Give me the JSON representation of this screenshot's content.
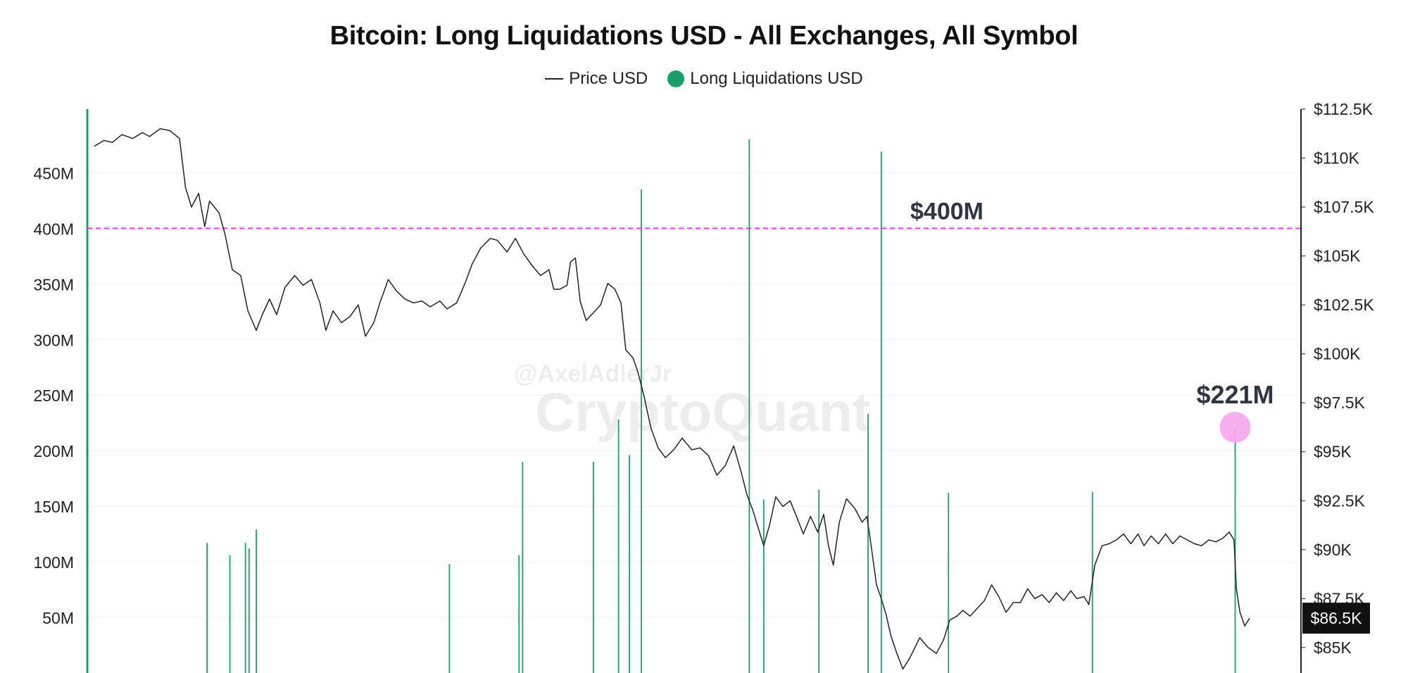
{
  "chart_data": {
    "type": "bar",
    "title": "Bitcoin: Long Liquidations USD - All Exchanges, All Symbol",
    "legend": [
      {
        "name": "Price USD",
        "marker": "line",
        "color": "#222222"
      },
      {
        "name": "Long Liquidations USD",
        "marker": "dot",
        "color": "#1a9e6c"
      }
    ],
    "legend_position": "top-center",
    "grid": true,
    "watermark": {
      "line1": "@AxelAdlerJr",
      "line2": "CryptoQuant"
    },
    "y_left": {
      "range": [
        0,
        480000000
      ],
      "ticks": [
        {
          "value": 50000000,
          "label": "50M"
        },
        {
          "value": 100000000,
          "label": "100M"
        },
        {
          "value": 150000000,
          "label": "150M"
        },
        {
          "value": 200000000,
          "label": "200M"
        },
        {
          "value": 250000000,
          "label": "250M"
        },
        {
          "value": 300000000,
          "label": "300M"
        },
        {
          "value": 350000000,
          "label": "350M"
        },
        {
          "value": 400000000,
          "label": "400M"
        },
        {
          "value": 450000000,
          "label": "450M"
        }
      ]
    },
    "y_right": {
      "range": [
        83700,
        112500
      ],
      "ticks": [
        {
          "value": 85000,
          "label": "$85K"
        },
        {
          "value": 87500,
          "label": "$87.5K"
        },
        {
          "value": 90000,
          "label": "$90K"
        },
        {
          "value": 92500,
          "label": "$92.5K"
        },
        {
          "value": 95000,
          "label": "$95K"
        },
        {
          "value": 97500,
          "label": "$97.5K"
        },
        {
          "value": 100000,
          "label": "$100K"
        },
        {
          "value": 102500,
          "label": "$102.5K"
        },
        {
          "value": 105000,
          "label": "$105K"
        },
        {
          "value": 107500,
          "label": "$107.5K"
        },
        {
          "value": 110000,
          "label": "$110K"
        },
        {
          "value": 112500,
          "label": "$112.5K"
        }
      ]
    },
    "x": {
      "range": [
        0,
        100
      ]
    },
    "threshold": {
      "value": 400000000,
      "label": "$400M",
      "color": "#e040e0"
    },
    "highlight": {
      "x": 95.1,
      "value": 221000000,
      "label": "$221M",
      "color": "#f7a6ee"
    },
    "current_price": {
      "value": 86500,
      "label": "$86.5K"
    },
    "series": [
      {
        "name": "Long Liquidations USD",
        "kind": "bar",
        "color": "#1a9e6c",
        "points": [
          {
            "x": 9.4,
            "v": 117000000
          },
          {
            "x": 11.3,
            "v": 106000000
          },
          {
            "x": 12.6,
            "v": 117000000
          },
          {
            "x": 12.9,
            "v": 112000000
          },
          {
            "x": 13.5,
            "v": 129000000
          },
          {
            "x": 29.6,
            "v": 98000000
          },
          {
            "x": 35.4,
            "v": 106000000
          },
          {
            "x": 35.7,
            "v": 190000000
          },
          {
            "x": 41.6,
            "v": 190000000
          },
          {
            "x": 43.7,
            "v": 228000000
          },
          {
            "x": 44.6,
            "v": 196000000
          },
          {
            "x": 45.6,
            "v": 435000000
          },
          {
            "x": 54.6,
            "v": 480000000
          },
          {
            "x": 55.8,
            "v": 156000000
          },
          {
            "x": 60.4,
            "v": 165000000
          },
          {
            "x": 64.5,
            "v": 233000000
          },
          {
            "x": 65.6,
            "v": 469000000
          },
          {
            "x": 71.2,
            "v": 162000000
          },
          {
            "x": 83.2,
            "v": 163000000
          },
          {
            "x": 95.1,
            "v": 221000000
          }
        ]
      },
      {
        "name": "Price USD",
        "kind": "line",
        "color": "#222222",
        "points": [
          [
            0.0,
            110600
          ],
          [
            0.8,
            110900
          ],
          [
            1.5,
            110800
          ],
          [
            2.3,
            111200
          ],
          [
            3.2,
            111000
          ],
          [
            4.0,
            111300
          ],
          [
            4.6,
            111100
          ],
          [
            5.5,
            111500
          ],
          [
            6.3,
            111400
          ],
          [
            7.1,
            111000
          ],
          [
            7.6,
            108500
          ],
          [
            8.1,
            107500
          ],
          [
            8.7,
            108200
          ],
          [
            9.2,
            106500
          ],
          [
            9.6,
            107800
          ],
          [
            10.4,
            107200
          ],
          [
            10.9,
            106100
          ],
          [
            11.5,
            104300
          ],
          [
            12.2,
            104000
          ],
          [
            12.8,
            102200
          ],
          [
            13.5,
            101200
          ],
          [
            14.0,
            102000
          ],
          [
            14.6,
            102800
          ],
          [
            15.2,
            102000
          ],
          [
            15.9,
            103400
          ],
          [
            16.7,
            104000
          ],
          [
            17.4,
            103500
          ],
          [
            18.1,
            103800
          ],
          [
            18.8,
            102600
          ],
          [
            19.3,
            101200
          ],
          [
            19.9,
            102200
          ],
          [
            20.6,
            101600
          ],
          [
            21.3,
            101900
          ],
          [
            22.0,
            102500
          ],
          [
            22.6,
            100900
          ],
          [
            23.3,
            101600
          ],
          [
            23.8,
            102600
          ],
          [
            24.5,
            103800
          ],
          [
            25.2,
            103200
          ],
          [
            25.9,
            102800
          ],
          [
            26.6,
            102600
          ],
          [
            27.3,
            102700
          ],
          [
            28.0,
            102400
          ],
          [
            28.8,
            102700
          ],
          [
            29.4,
            102300
          ],
          [
            30.2,
            102600
          ],
          [
            30.9,
            103600
          ],
          [
            31.5,
            104600
          ],
          [
            32.2,
            105400
          ],
          [
            33.0,
            105900
          ],
          [
            33.6,
            105800
          ],
          [
            34.4,
            105200
          ],
          [
            35.1,
            105900
          ],
          [
            35.8,
            105100
          ],
          [
            36.5,
            104500
          ],
          [
            37.2,
            104000
          ],
          [
            37.9,
            104300
          ],
          [
            38.3,
            103300
          ],
          [
            38.8,
            103300
          ],
          [
            39.4,
            103500
          ],
          [
            39.7,
            104700
          ],
          [
            40.1,
            104900
          ],
          [
            40.5,
            102700
          ],
          [
            41.0,
            101700
          ],
          [
            41.6,
            102100
          ],
          [
            42.2,
            102500
          ],
          [
            42.8,
            103600
          ],
          [
            43.4,
            103300
          ],
          [
            43.9,
            102600
          ],
          [
            44.3,
            100200
          ],
          [
            44.9,
            99800
          ],
          [
            45.3,
            99100
          ],
          [
            45.8,
            97900
          ],
          [
            46.4,
            96200
          ],
          [
            47.0,
            95200
          ],
          [
            47.6,
            94700
          ],
          [
            48.3,
            95100
          ],
          [
            49.0,
            95700
          ],
          [
            49.8,
            95100
          ],
          [
            50.5,
            95200
          ],
          [
            51.2,
            94800
          ],
          [
            51.9,
            93800
          ],
          [
            52.6,
            94300
          ],
          [
            53.3,
            95300
          ],
          [
            53.9,
            94000
          ],
          [
            54.4,
            92800
          ],
          [
            54.9,
            92000
          ],
          [
            55.4,
            91000
          ],
          [
            55.8,
            90200
          ],
          [
            56.3,
            91300
          ],
          [
            56.8,
            92700
          ],
          [
            57.4,
            92200
          ],
          [
            58.0,
            92500
          ],
          [
            58.6,
            91600
          ],
          [
            59.1,
            90800
          ],
          [
            59.7,
            91700
          ],
          [
            60.3,
            90900
          ],
          [
            60.8,
            91800
          ],
          [
            61.2,
            90200
          ],
          [
            61.6,
            89200
          ],
          [
            62.1,
            91400
          ],
          [
            62.7,
            92600
          ],
          [
            63.4,
            92100
          ],
          [
            64.0,
            91400
          ],
          [
            64.4,
            91700
          ],
          [
            64.8,
            90000
          ],
          [
            65.2,
            88200
          ],
          [
            65.6,
            87500
          ],
          [
            66.0,
            86700
          ],
          [
            66.4,
            85600
          ],
          [
            66.9,
            84700
          ],
          [
            67.4,
            83900
          ],
          [
            68.0,
            84500
          ],
          [
            68.8,
            85500
          ],
          [
            69.5,
            85000
          ],
          [
            70.2,
            84700
          ],
          [
            70.8,
            85400
          ],
          [
            71.3,
            86400
          ],
          [
            71.9,
            86600
          ],
          [
            72.4,
            86900
          ],
          [
            73.0,
            86600
          ],
          [
            73.6,
            87000
          ],
          [
            74.2,
            87400
          ],
          [
            74.8,
            88200
          ],
          [
            75.4,
            87600
          ],
          [
            76.0,
            86800
          ],
          [
            76.6,
            87300
          ],
          [
            77.2,
            87300
          ],
          [
            77.8,
            88000
          ],
          [
            78.4,
            87500
          ],
          [
            79.0,
            87700
          ],
          [
            79.6,
            87300
          ],
          [
            80.2,
            87800
          ],
          [
            80.8,
            87400
          ],
          [
            81.4,
            87900
          ],
          [
            81.9,
            87500
          ],
          [
            82.5,
            87600
          ],
          [
            82.9,
            87200
          ],
          [
            83.4,
            89200
          ],
          [
            84.0,
            90200
          ],
          [
            84.6,
            90300
          ],
          [
            85.2,
            90500
          ],
          [
            85.8,
            90800
          ],
          [
            86.4,
            90300
          ],
          [
            87.0,
            90800
          ],
          [
            87.5,
            90200
          ],
          [
            88.1,
            90700
          ],
          [
            88.7,
            90300
          ],
          [
            89.3,
            90800
          ],
          [
            89.9,
            90300
          ],
          [
            90.5,
            90700
          ],
          [
            91.1,
            90500
          ],
          [
            91.7,
            90300
          ],
          [
            92.3,
            90200
          ],
          [
            92.9,
            90500
          ],
          [
            93.5,
            90400
          ],
          [
            94.1,
            90600
          ],
          [
            94.6,
            90900
          ],
          [
            95.0,
            90500
          ],
          [
            95.2,
            88000
          ],
          [
            95.5,
            86800
          ],
          [
            95.9,
            86100
          ],
          [
            96.3,
            86500
          ]
        ]
      }
    ]
  }
}
